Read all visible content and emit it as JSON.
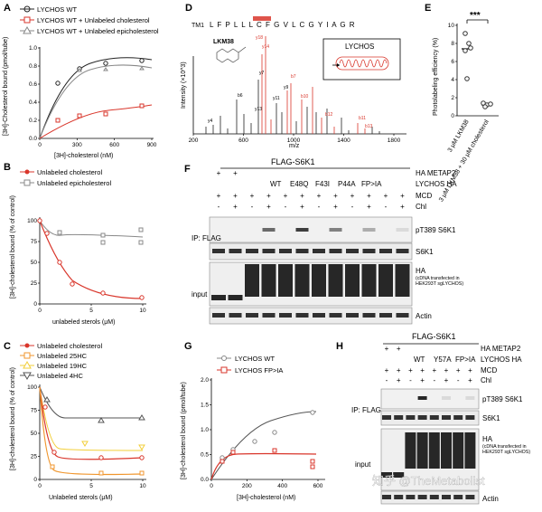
{
  "colors": {
    "wt": "#222222",
    "red": "#d9362b",
    "grey": "#888888",
    "orange": "#f0962d",
    "yellow": "#f2cf3a",
    "pink": "#e8607a"
  },
  "panelA": {
    "label": "A",
    "legend": [
      "LYCHOS WT",
      "LYCHOS WT + Unlabeled cholesterol",
      "LYCHOS WT + Unlabeled epicholesterol"
    ],
    "ylabel": "[3H]-Cholesterol bound (pmol/tube)",
    "xlabel": "[3H]-cholesterol (nM)",
    "xticks": [
      "0",
      "300",
      "600",
      "900"
    ],
    "yticks": [
      "0.0",
      "0.2",
      "0.4",
      "0.6",
      "0.8",
      "1.0"
    ]
  },
  "panelB": {
    "label": "B",
    "legend": [
      "Unlabeled cholesterol",
      "Unlabeled epicholesterol"
    ],
    "ylabel": "[3H]-cholesterol bound (% of control)",
    "xlabel": "unlabeled sterols (μM)",
    "xticks": [
      "0",
      "5",
      "10"
    ],
    "yticks": [
      "0",
      "25",
      "50",
      "75",
      "100"
    ]
  },
  "panelC": {
    "label": "C",
    "legend": [
      "Unlabeled cholesterol",
      "Unlabeled 25HC",
      "Unlabeled 19HC",
      "Unlabeled 4HC"
    ],
    "ylabel": "[3H]-cholesterol bound (% of control)",
    "xlabel": "Unlabeled sterols (μM)",
    "xticks": [
      "0",
      "5",
      "10"
    ],
    "yticks": [
      "0",
      "25",
      "50",
      "75",
      "100"
    ]
  },
  "panelD": {
    "label": "D",
    "sequence_prefix": "TM1",
    "sequence": "L F P L L L C F G V L C G Y I A G R",
    "compound": "LKM38",
    "inset": "LYCHOS",
    "ylabel": "Intensity (×10^3)",
    "xlabel": "m/z",
    "xticks": [
      "200",
      "600",
      "1000",
      "1400",
      "1800"
    ],
    "annotations": [
      "y18",
      "y14",
      "y7",
      "b6",
      "y13",
      "y11",
      "b7",
      "y9",
      "b10",
      "b12",
      "b13",
      "b11",
      "y4"
    ]
  },
  "panelE": {
    "label": "E",
    "ylabel": "Photolabeling efficiency (%)",
    "significance": "***",
    "yticks": [
      "0",
      "2",
      "4",
      "6",
      "8",
      "10"
    ],
    "categories": [
      "3 μM LKM38",
      "3 μM LKM38 + 30 μM cholesterol"
    ]
  },
  "panelF": {
    "label": "F",
    "header": "FLAG-S6K1",
    "row_labels": [
      "HA METAP2",
      "LYCHOS HA",
      "MCD",
      "Chl"
    ],
    "variants": [
      "WT",
      "E48Q",
      "F43I",
      "P44A",
      "FP>IA"
    ],
    "ip_label": "IP: FLAG",
    "input_label": "input",
    "bands": [
      "pT389 S6K1",
      "S6K1",
      "HA",
      "Actin"
    ],
    "note": "(cDNA transfected in HEK293T sgLYCHOS)"
  },
  "panelG": {
    "label": "G",
    "legend": [
      "LYCHOS WT",
      "LYCHOS FP>IA"
    ],
    "ylabel": "[3H]-cholesterol bound (pmol/tube)",
    "xlabel": "[3H]-cholesterol (nM)",
    "xticks": [
      "0",
      "200",
      "400",
      "600"
    ],
    "yticks": [
      "0.0",
      "0.5",
      "1.0",
      "1.5",
      "2.0"
    ]
  },
  "panelH": {
    "label": "H",
    "header": "FLAG-S6K1",
    "row_labels": [
      "HA METAP2",
      "LYCHOS HA",
      "MCD",
      "Chl"
    ],
    "variants": [
      "WT",
      "Y57A",
      "FP>IA"
    ],
    "ip_label": "IP: FLAG",
    "input_label": "input",
    "bands": [
      "pT389 S6K1",
      "S6K1",
      "HA",
      "Actin"
    ],
    "note": "(cDNA transfected in HEK293T sgLYCHOS)"
  },
  "watermark": "知乎 @TheMetabolist"
}
